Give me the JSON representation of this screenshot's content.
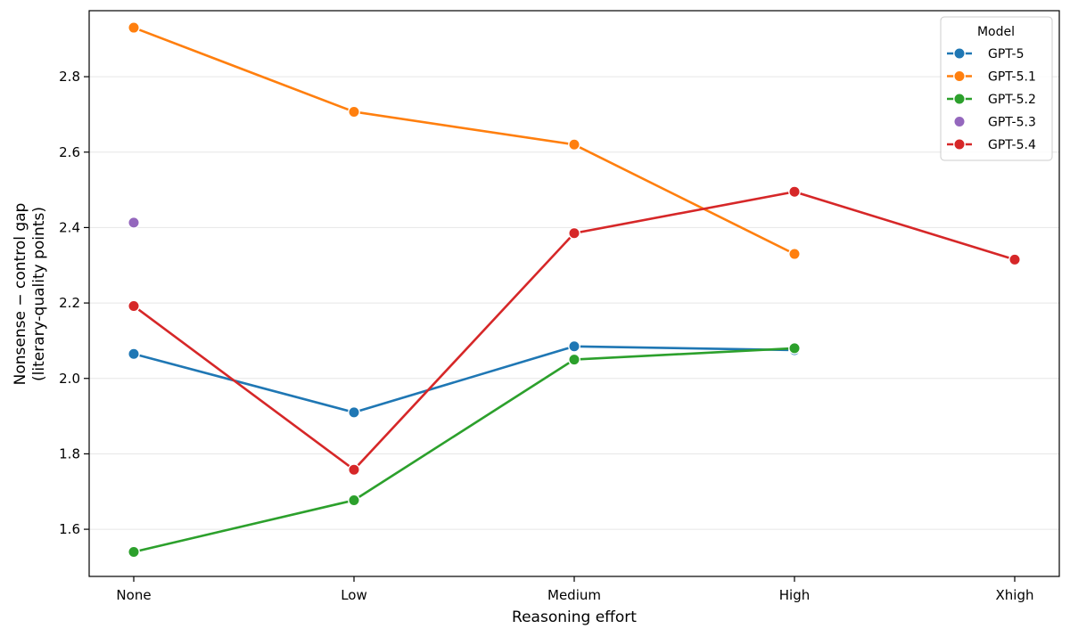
{
  "chart_data": {
    "type": "line",
    "title": "",
    "xlabel": "Reasoning effort",
    "ylabel_lines": [
      "Nonsense − control gap",
      "(literary-quality points)"
    ],
    "categories": [
      "None",
      "Low",
      "Medium",
      "High",
      "Xhigh"
    ],
    "ylim": [
      1.475,
      2.975
    ],
    "yticks": [
      1.6,
      1.8,
      2.0,
      2.2,
      2.4,
      2.6,
      2.8
    ],
    "ytick_labels": [
      "1.6",
      "1.8",
      "2.0",
      "2.2",
      "2.4",
      "2.6",
      "2.8"
    ],
    "grid": "horizontal",
    "legend": {
      "title": "Model",
      "placement": "top-right"
    },
    "series": [
      {
        "name": "GPT-5",
        "color": "#1f77b4",
        "values": [
          2.065,
          1.91,
          2.085,
          2.075,
          null
        ]
      },
      {
        "name": "GPT-5.1",
        "color": "#ff7f0e",
        "values": [
          2.93,
          2.707,
          2.62,
          2.33,
          null
        ]
      },
      {
        "name": "GPT-5.2",
        "color": "#2ca02c",
        "values": [
          1.54,
          1.677,
          2.05,
          2.08,
          null
        ]
      },
      {
        "name": "GPT-5.3",
        "color": "#9467bd",
        "values": [
          2.413,
          null,
          null,
          null,
          null
        ]
      },
      {
        "name": "GPT-5.4",
        "color": "#d62728",
        "values": [
          2.192,
          1.758,
          2.385,
          2.495,
          2.315
        ]
      }
    ]
  }
}
